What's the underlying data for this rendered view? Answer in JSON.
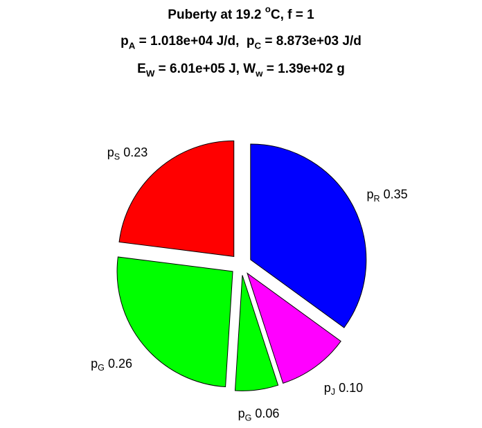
{
  "chart_data": {
    "type": "pie",
    "title": [
      [
        "Puberty at 19.2 ",
        {
          "sup": "o"
        },
        "C, f = 1"
      ],
      [
        "p",
        {
          "sub": "A"
        },
        " = 1.018e+04 J/d,  p",
        {
          "sub": "C"
        },
        " = 8.873e+03 J/d"
      ],
      [
        "E",
        {
          "sub": "W"
        },
        " = 6.01e+05 J, W",
        {
          "sub": "w"
        },
        " = 1.39e+02 g"
      ]
    ],
    "categories": [
      [
        "p",
        {
          "sub": "S"
        }
      ],
      [
        "p",
        {
          "sub": "G"
        }
      ],
      [
        "p",
        {
          "sub": "G"
        }
      ],
      [
        "p",
        {
          "sub": "J"
        }
      ],
      [
        "p",
        {
          "sub": "R"
        }
      ]
    ],
    "values": [
      0.23,
      0.26,
      0.06,
      0.1,
      0.35
    ],
    "value_labels": [
      "0.23",
      "0.26",
      "0.06",
      "0.10",
      "0.35"
    ],
    "colors": [
      "#ff0000",
      "#00ff00",
      "#00ff00",
      "#ff00ff",
      "#0000ff"
    ],
    "start_angle": 90,
    "direction": "counterclockwise",
    "explode": true
  }
}
